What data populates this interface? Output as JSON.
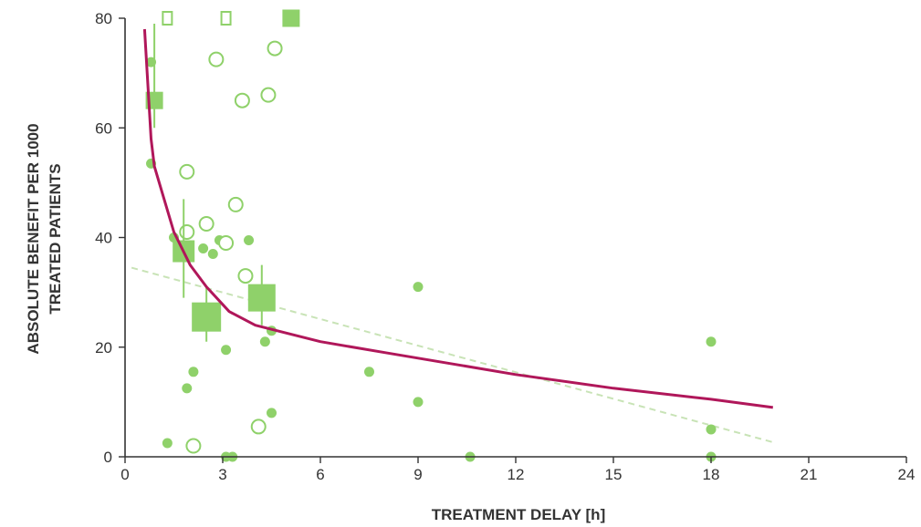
{
  "chart_data": {
    "type": "scatter",
    "title": "",
    "xlabel": "TREATMENT DELAY [h]",
    "ylabel_lines": [
      "ABSOLUTE BENEFIT PER 1000",
      "TREATED PATIENTS"
    ],
    "xlim": [
      0,
      24
    ],
    "ylim": [
      0,
      80
    ],
    "x_ticks": [
      0,
      3,
      6,
      9,
      12,
      15,
      18,
      21,
      24
    ],
    "y_ticks": [
      0,
      20,
      40,
      60,
      80
    ],
    "grid": false,
    "legend": "none",
    "colors": {
      "points": "#8fd16a",
      "curve": "#b0175a",
      "trend": "#c8e3b6",
      "axis": "#333333"
    },
    "series": [
      {
        "marker": "filled-circle",
        "points": [
          {
            "x": 0.8,
            "y": 72
          },
          {
            "x": 0.8,
            "y": 53.5
          },
          {
            "x": 1.3,
            "y": 2.5
          },
          {
            "x": 1.5,
            "y": 40
          },
          {
            "x": 1.9,
            "y": 12.5
          },
          {
            "x": 2.1,
            "y": 15.5
          },
          {
            "x": 2.4,
            "y": 38
          },
          {
            "x": 2.7,
            "y": 37
          },
          {
            "x": 2.9,
            "y": 39.5
          },
          {
            "x": 3.1,
            "y": 19.5
          },
          {
            "x": 3.1,
            "y": 0
          },
          {
            "x": 3.3,
            "y": 0
          },
          {
            "x": 3.8,
            "y": 39.5
          },
          {
            "x": 4.3,
            "y": 21
          },
          {
            "x": 4.5,
            "y": 23
          },
          {
            "x": 4.5,
            "y": 8
          },
          {
            "x": 7.5,
            "y": 15.5
          },
          {
            "x": 9.0,
            "y": 31
          },
          {
            "x": 9.0,
            "y": 10
          },
          {
            "x": 10.6,
            "y": 0
          },
          {
            "x": 18.0,
            "y": 21
          },
          {
            "x": 18.0,
            "y": 5
          },
          {
            "x": 18.0,
            "y": 0
          }
        ]
      },
      {
        "marker": "open-circle",
        "points": [
          {
            "x": 1.9,
            "y": 52
          },
          {
            "x": 1.9,
            "y": 41
          },
          {
            "x": 2.1,
            "y": 2
          },
          {
            "x": 2.5,
            "y": 42.5
          },
          {
            "x": 2.8,
            "y": 72.5
          },
          {
            "x": 3.1,
            "y": 39
          },
          {
            "x": 3.4,
            "y": 46
          },
          {
            "x": 3.6,
            "y": 65
          },
          {
            "x": 3.7,
            "y": 33
          },
          {
            "x": 4.1,
            "y": 5.5
          },
          {
            "x": 4.4,
            "y": 66
          },
          {
            "x": 4.6,
            "y": 74.5
          }
        ]
      },
      {
        "marker": "filled-square",
        "points": [
          {
            "x": 0.9,
            "y": 65,
            "weight": 0.35,
            "error": [
              60,
              79
            ]
          },
          {
            "x": 1.8,
            "y": 37.5,
            "weight": 0.6,
            "error": [
              29,
              47
            ]
          },
          {
            "x": 2.5,
            "y": 25.5,
            "weight": 1.0,
            "error": [
              21,
              31
            ]
          },
          {
            "x": 4.2,
            "y": 29,
            "weight": 0.9,
            "error": [
              24,
              35
            ]
          },
          {
            "x": 5.1,
            "y": 80,
            "weight": 0.35
          }
        ]
      },
      {
        "marker": "open-square",
        "points": [
          {
            "x": 1.3,
            "y": 80
          },
          {
            "x": 3.1,
            "y": 80
          }
        ]
      },
      {
        "name": "",
        "line_style": "solid",
        "role": "fitted-curve",
        "points": [
          {
            "x": 0.6,
            "y": 78
          },
          {
            "x": 0.8,
            "y": 58
          },
          {
            "x": 0.9,
            "y": 53
          },
          {
            "x": 1.2,
            "y": 47
          },
          {
            "x": 1.5,
            "y": 41
          },
          {
            "x": 2.0,
            "y": 35
          },
          {
            "x": 2.5,
            "y": 31
          },
          {
            "x": 3.2,
            "y": 26.5
          },
          {
            "x": 4.0,
            "y": 24
          },
          {
            "x": 5.0,
            "y": 22.5
          },
          {
            "x": 6.0,
            "y": 21
          },
          {
            "x": 8.0,
            "y": 19
          },
          {
            "x": 10.0,
            "y": 17
          },
          {
            "x": 12.0,
            "y": 15
          },
          {
            "x": 15.0,
            "y": 12.5
          },
          {
            "x": 18.0,
            "y": 10.5
          },
          {
            "x": 19.9,
            "y": 9
          }
        ]
      },
      {
        "name": "",
        "line_style": "dashed",
        "role": "linear-trend",
        "points": [
          {
            "x": 0.2,
            "y": 34.5
          },
          {
            "x": 20.0,
            "y": 2.5
          }
        ]
      }
    ]
  }
}
